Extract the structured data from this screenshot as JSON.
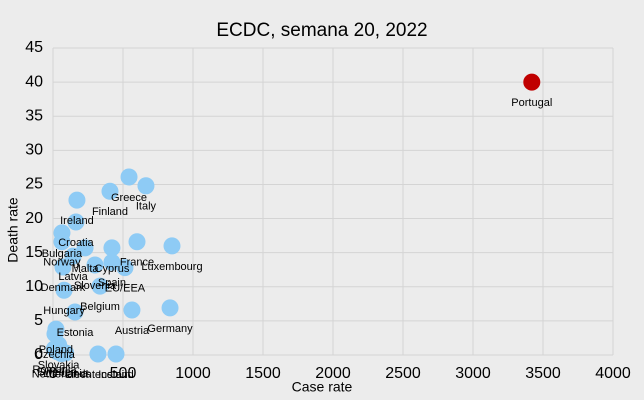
{
  "chart_data": {
    "type": "scatter",
    "title": "ECDC, semana 20, 2022",
    "x_label": "Case rate",
    "y_label": "Death rate",
    "xlim": [
      0,
      4000
    ],
    "xticks": [
      0,
      500,
      1000,
      1500,
      2000,
      2500,
      3000,
      3500,
      4000
    ],
    "ylim": [
      0,
      45
    ],
    "yticks": [
      0,
      5,
      10,
      15,
      20,
      25,
      30,
      35,
      40,
      45
    ],
    "grid": true,
    "labels": [
      "Portugal",
      "Greece",
      "Italy",
      "Finland",
      "Ireland",
      "Croatia",
      "Bulgaria",
      "Norway",
      "France",
      "Luxembourg",
      "Cyprus",
      "Malta",
      "Latvia",
      "Spain",
      "Slovenia",
      "Denmark",
      "EU/EEA",
      "Belgium",
      "Hungary",
      "Germany",
      "Austria",
      "Estonia",
      "Poland",
      "Czechia",
      "Slovakia",
      "Romania",
      "Sweden",
      "Netherlands",
      "Lithuania",
      "Liechtenstein",
      "Iceland"
    ],
    "x": [
      3420,
      543,
      664,
      407,
      171,
      164,
      64,
      64,
      600,
      850,
      421,
      229,
      143,
      421,
      300,
      71,
      514,
      336,
      79,
      836,
      564,
      157,
      21,
      14,
      40,
      10,
      30,
      60,
      90,
      321,
      450
    ],
    "y": [
      40,
      26.1,
      24.8,
      24,
      22.7,
      19.5,
      17.9,
      16.6,
      16.6,
      16,
      15.7,
      15.7,
      14.5,
      13.6,
      13.2,
      12.9,
      12.8,
      10.1,
      9.5,
      6.9,
      6.6,
      6.3,
      3.8,
      3.1,
      1.5,
      0.9,
      0.5,
      0.2,
      0.3,
      0.15,
      0.15
    ],
    "colors": [
      "#c00000",
      "#8ecbf5",
      "#8ecbf5",
      "#8ecbf5",
      "#8ecbf5",
      "#8ecbf5",
      "#8ecbf5",
      "#8ecbf5",
      "#8ecbf5",
      "#8ecbf5",
      "#8ecbf5",
      "#8ecbf5",
      "#8ecbf5",
      "#8ecbf5",
      "#8ecbf5",
      "#8ecbf5",
      "#8ecbf5",
      "#8ecbf5",
      "#8ecbf5",
      "#8ecbf5",
      "#8ecbf5",
      "#8ecbf5",
      "#8ecbf5",
      "#8ecbf5",
      "#8ecbf5",
      "#8ecbf5",
      "#8ecbf5",
      "#8ecbf5",
      "#8ecbf5",
      "#8ecbf5",
      "#8ecbf5"
    ]
  }
}
